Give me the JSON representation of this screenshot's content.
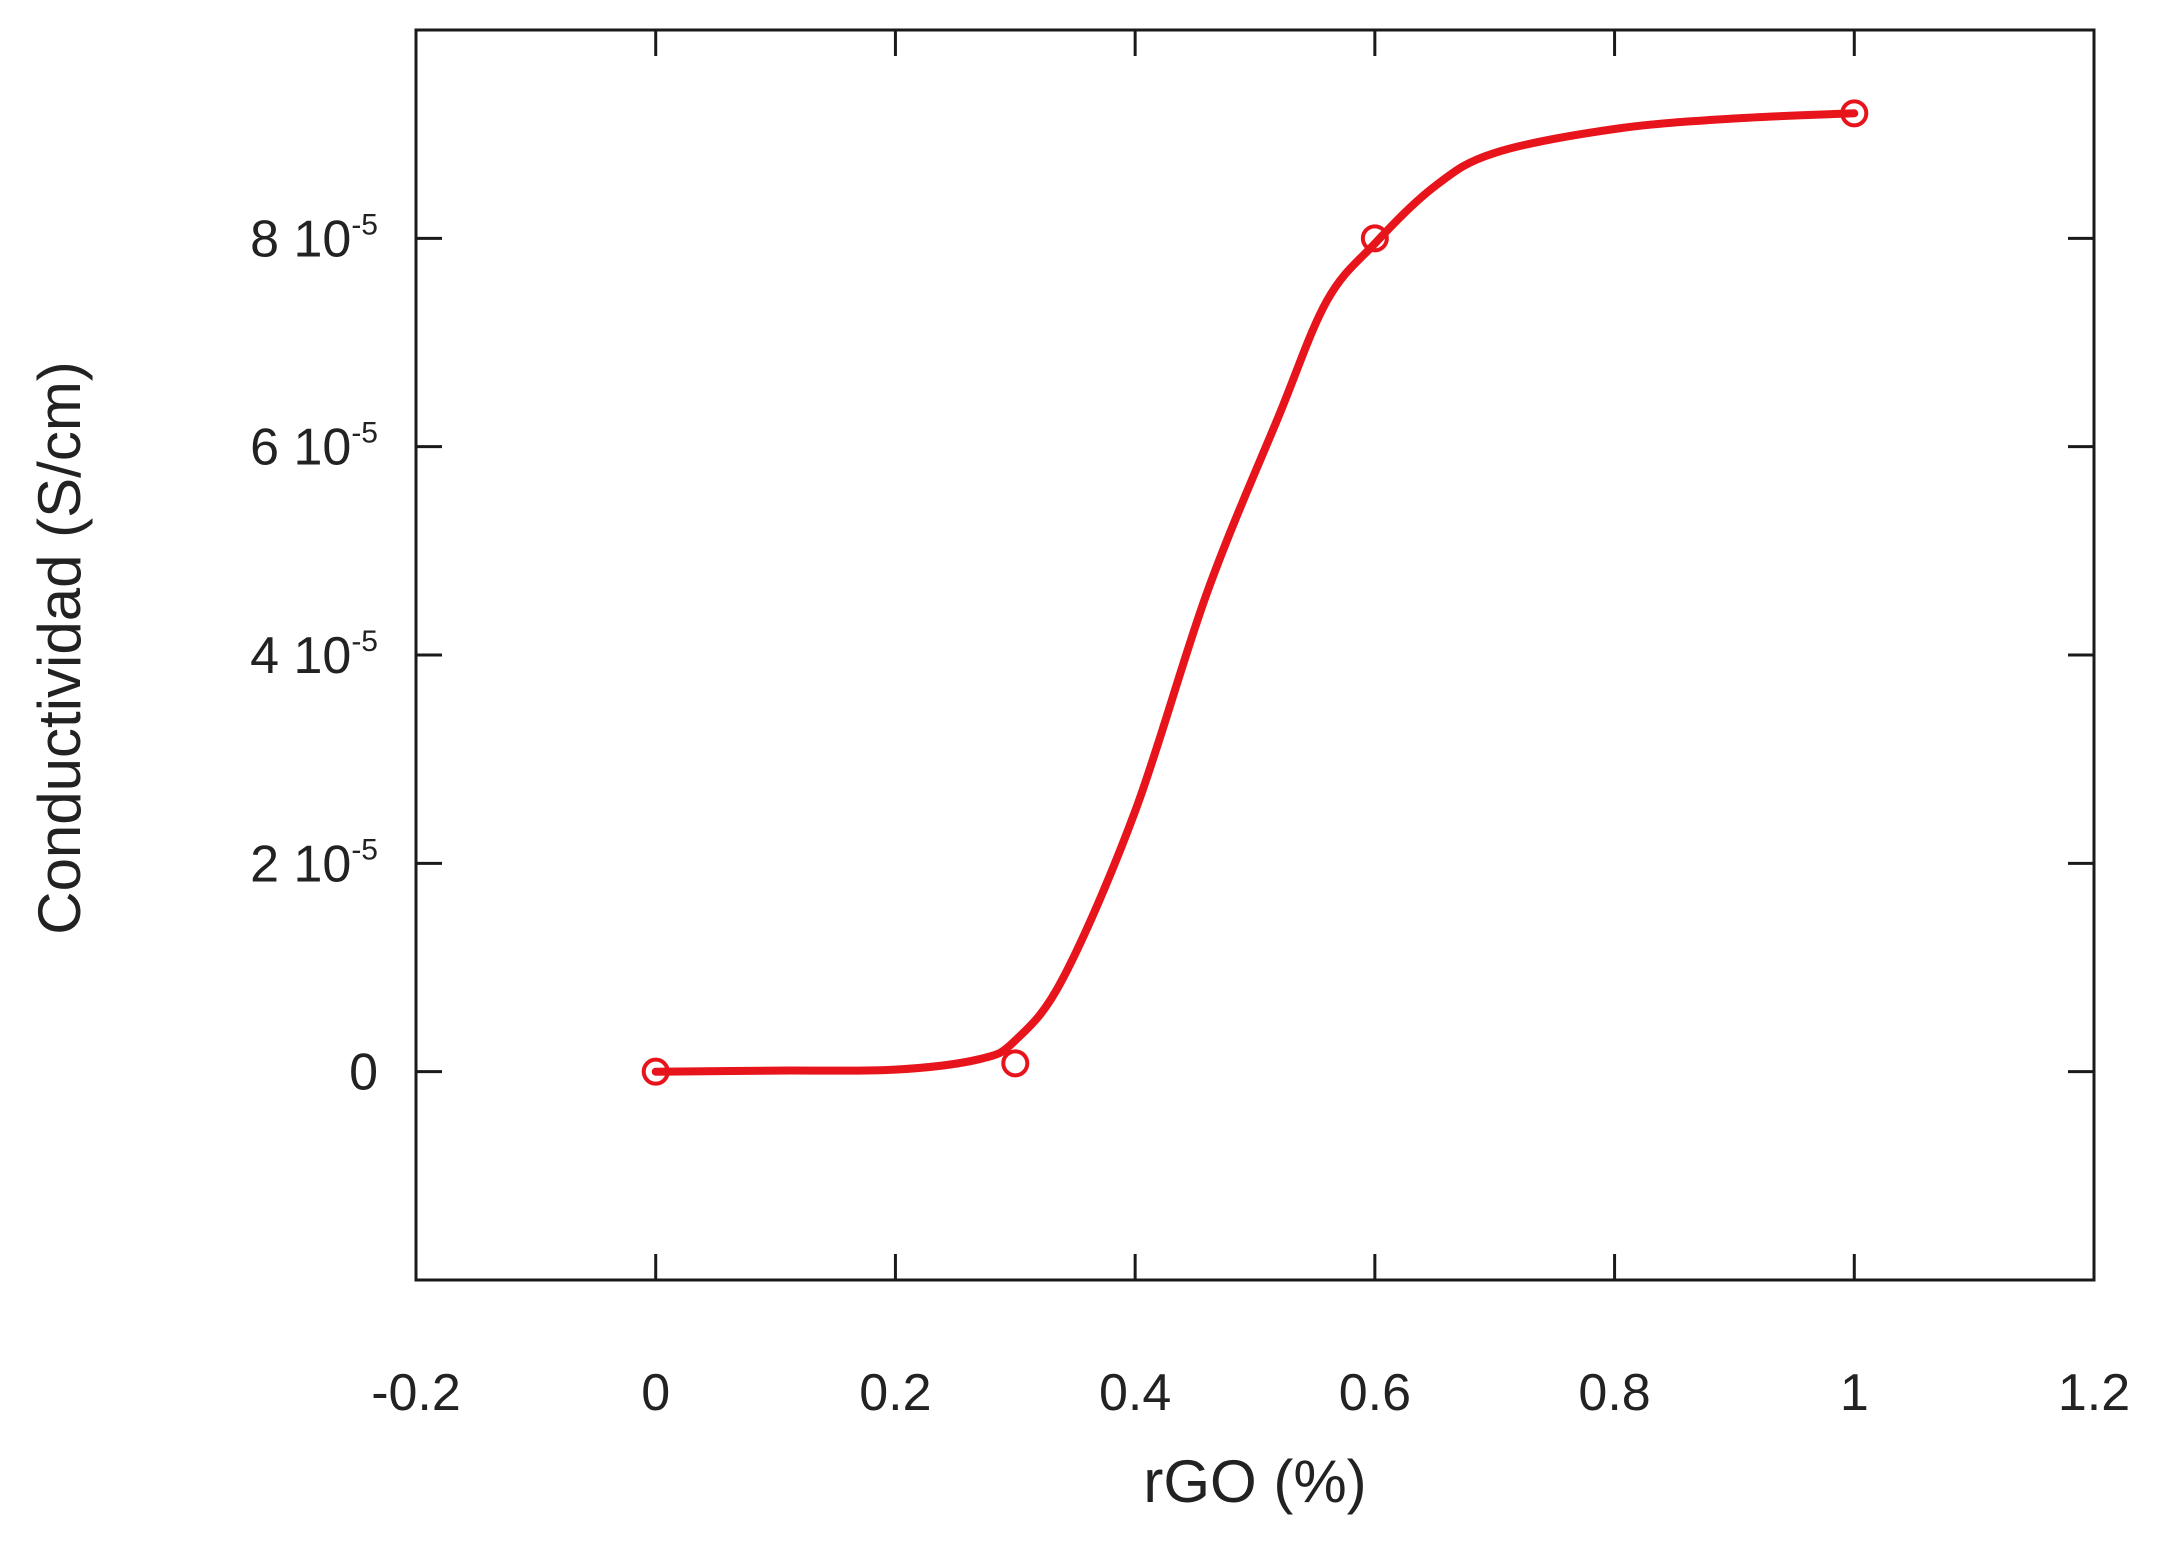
{
  "chart_data": {
    "type": "line",
    "xlabel": "rGO (%)",
    "ylabel": "Conductividad (S/cm)",
    "xlim": [
      -0.2,
      1.2
    ],
    "ylim": [
      -2e-05,
      0.0001
    ],
    "x_ticks": [
      {
        "value": -0.2,
        "label": "-0.2"
      },
      {
        "value": 0,
        "label": "0"
      },
      {
        "value": 0.2,
        "label": "0.2"
      },
      {
        "value": 0.4,
        "label": "0.4"
      },
      {
        "value": 0.6,
        "label": "0.6"
      },
      {
        "value": 0.8,
        "label": "0.8"
      },
      {
        "value": 1,
        "label": "1"
      },
      {
        "value": 1.2,
        "label": "1.2"
      }
    ],
    "y_ticks": [
      {
        "value": 0,
        "mantissa": "0",
        "exponent": ""
      },
      {
        "value": 2e-05,
        "mantissa": "2 10",
        "exponent": "-5"
      },
      {
        "value": 4e-05,
        "mantissa": "4 10",
        "exponent": "-5"
      },
      {
        "value": 6e-05,
        "mantissa": "6 10",
        "exponent": "-5"
      },
      {
        "value": 8e-05,
        "mantissa": "8 10",
        "exponent": "-5"
      }
    ],
    "grid": false,
    "series": [
      {
        "color": "#e8141c",
        "marker": "open-circle",
        "points": [
          {
            "x": 0,
            "y": 0
          },
          {
            "x": 0.3,
            "y": 8e-07
          },
          {
            "x": 0.6,
            "y": 8e-05
          },
          {
            "x": 1,
            "y": 9.2e-05
          }
        ],
        "curve": [
          {
            "x": 0,
            "y": 0
          },
          {
            "x": 0.1,
            "y": 1e-07
          },
          {
            "x": 0.2,
            "y": 2e-07
          },
          {
            "x": 0.27,
            "y": 1.2e-06
          },
          {
            "x": 0.3,
            "y": 3e-06
          },
          {
            "x": 0.34,
            "y": 9e-06
          },
          {
            "x": 0.4,
            "y": 2.5e-05
          },
          {
            "x": 0.46,
            "y": 4.6e-05
          },
          {
            "x": 0.52,
            "y": 6.3e-05
          },
          {
            "x": 0.56,
            "y": 7.4e-05
          },
          {
            "x": 0.6,
            "y": 7.95e-05
          },
          {
            "x": 0.65,
            "y": 8.5e-05
          },
          {
            "x": 0.7,
            "y": 8.82e-05
          },
          {
            "x": 0.8,
            "y": 9.05e-05
          },
          {
            "x": 0.9,
            "y": 9.15e-05
          },
          {
            "x": 1,
            "y": 9.2e-05
          }
        ]
      }
    ]
  }
}
